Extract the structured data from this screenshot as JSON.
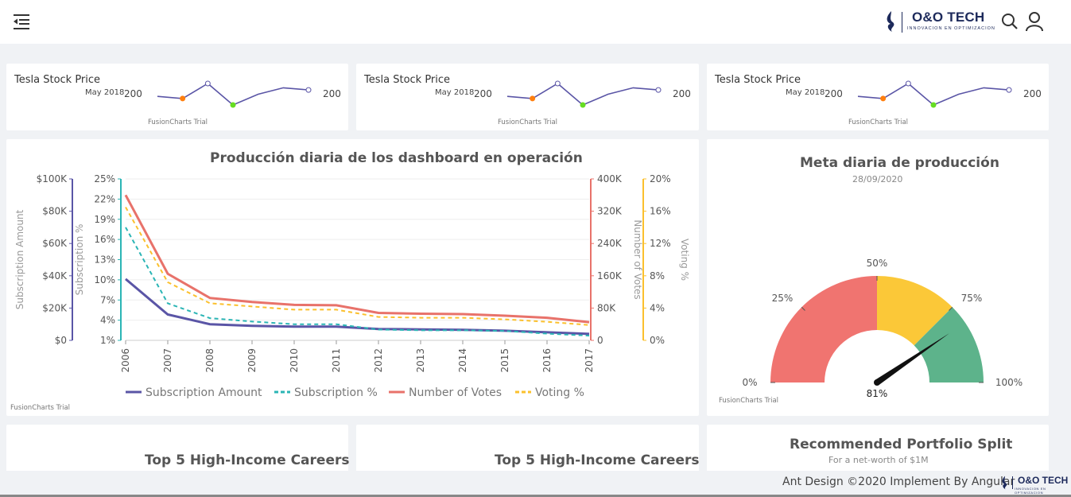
{
  "header": {
    "menu_icon": "menu-fold-icon",
    "brand": "O&O TECH",
    "brand_tagline": "INNOVACION EN OPTIMIZACION",
    "search_icon": "search-icon",
    "user_icon": "user-icon"
  },
  "sparklines": [
    {
      "title": "Tesla Stock Price",
      "open_label": "May 2018",
      "open_value": "200",
      "close_value": "200",
      "trial": "FusionCharts Trial"
    },
    {
      "title": "Tesla Stock Price",
      "open_label": "May 2018",
      "open_value": "200",
      "close_value": "200",
      "trial": "FusionCharts Trial"
    },
    {
      "title": "Tesla Stock Price",
      "open_label": "May 2018",
      "open_value": "200",
      "close_value": "200",
      "trial": "FusionCharts Trial"
    }
  ],
  "spark_colors": {
    "line": "#5a55a6",
    "low": "#ff7f0e",
    "high": "#66dd22"
  },
  "main_chart": {
    "title": "Producción diaria de los dashboard en operación",
    "trial": "FusionCharts Trial"
  },
  "gauge": {
    "title": "Meta diaria de producción",
    "date": "28/09/2020",
    "labels": [
      "0%",
      "25%",
      "50%",
      "75%",
      "100%"
    ],
    "value_label": "81%",
    "trial": "FusionCharts Trial"
  },
  "bottom_cards": [
    {
      "title": "Top 5 High-Income Careers"
    },
    {
      "title": "Top 5 High-Income Careers"
    },
    {
      "title": "Recommended Portfolio Split",
      "subtitle": "For a net-worth of $1M"
    }
  ],
  "footer": {
    "text": "Ant Design ©2020 Implement By Angular",
    "brand": "O&O TECH",
    "brand_tagline": "INNOVACION EN OPTIMIZACION"
  },
  "chart_data": [
    {
      "type": "line",
      "chart": "sparkline",
      "title": "Tesla Stock Price",
      "x": [
        1,
        2,
        3,
        4,
        5,
        6,
        7
      ],
      "values": [
        200,
        199,
        206,
        196,
        201,
        204,
        203
      ]
    },
    {
      "type": "line",
      "chart": "multi-axis",
      "title": "Producción diaria de los dashboard en operación",
      "categories": [
        "2006",
        "2007",
        "2008",
        "2009",
        "2010",
        "2011",
        "2012",
        "2013",
        "2014",
        "2015",
        "2016",
        "2017"
      ],
      "series": [
        {
          "name": "Subscription Amount",
          "axis": "Subscription Amount",
          "color": "#5a55a6",
          "dashed": false,
          "values": [
            38000,
            16000,
            10000,
            9000,
            8500,
            8500,
            7000,
            6800,
            6500,
            6000,
            5000,
            4000
          ]
        },
        {
          "name": "Subscription %",
          "axis": "Subscription %",
          "color": "#2bb5b5",
          "dashed": true,
          "values": [
            17.8,
            6.5,
            4.3,
            3.8,
            3.4,
            3.4,
            2.6,
            2.5,
            2.5,
            2.4,
            2.0,
            1.7
          ]
        },
        {
          "name": "Number of Votes",
          "axis": "Number of Votes",
          "color": "#e8726a",
          "dashed": false,
          "values": [
            360000,
            165000,
            105000,
            95000,
            88000,
            87000,
            68000,
            66000,
            65000,
            61000,
            56000,
            45000
          ]
        },
        {
          "name": "Voting %",
          "axis": "Voting %",
          "color": "#fbc02d",
          "dashed": true,
          "values": [
            16.5,
            7.2,
            4.6,
            4.2,
            3.8,
            3.8,
            2.9,
            2.8,
            2.8,
            2.6,
            2.3,
            1.9
          ]
        }
      ],
      "axes": [
        {
          "label": "Subscription Amount",
          "ticks": [
            "$0",
            "$20K",
            "$40K",
            "$60K",
            "$80K",
            "$100K"
          ],
          "range": [
            0,
            100000
          ],
          "color": "#5a55a6"
        },
        {
          "label": "Subscription %",
          "ticks": [
            "1%",
            "4%",
            "7%",
            "10%",
            "13%",
            "16%",
            "19%",
            "22%",
            "25%"
          ],
          "range": [
            1,
            25
          ],
          "color": "#2bb5b5"
        },
        {
          "label": "Number of Votes",
          "ticks": [
            "0",
            "80K",
            "160K",
            "240K",
            "320K",
            "400K"
          ],
          "range": [
            0,
            400000
          ],
          "color": "#e8726a"
        },
        {
          "label": "Voting %",
          "ticks": [
            "0%",
            "4%",
            "8%",
            "12%",
            "16%",
            "20%"
          ],
          "range": [
            0,
            20
          ],
          "color": "#fbc02d"
        }
      ],
      "legend": "bottom"
    },
    {
      "type": "gauge",
      "title": "Meta diaria de producción",
      "value": 81,
      "range": [
        0,
        100
      ],
      "bands": [
        {
          "from": 0,
          "to": 50,
          "color": "#f07470"
        },
        {
          "from": 50,
          "to": 75,
          "color": "#fbc838"
        },
        {
          "from": 75,
          "to": 100,
          "color": "#5db38b"
        }
      ]
    }
  ]
}
